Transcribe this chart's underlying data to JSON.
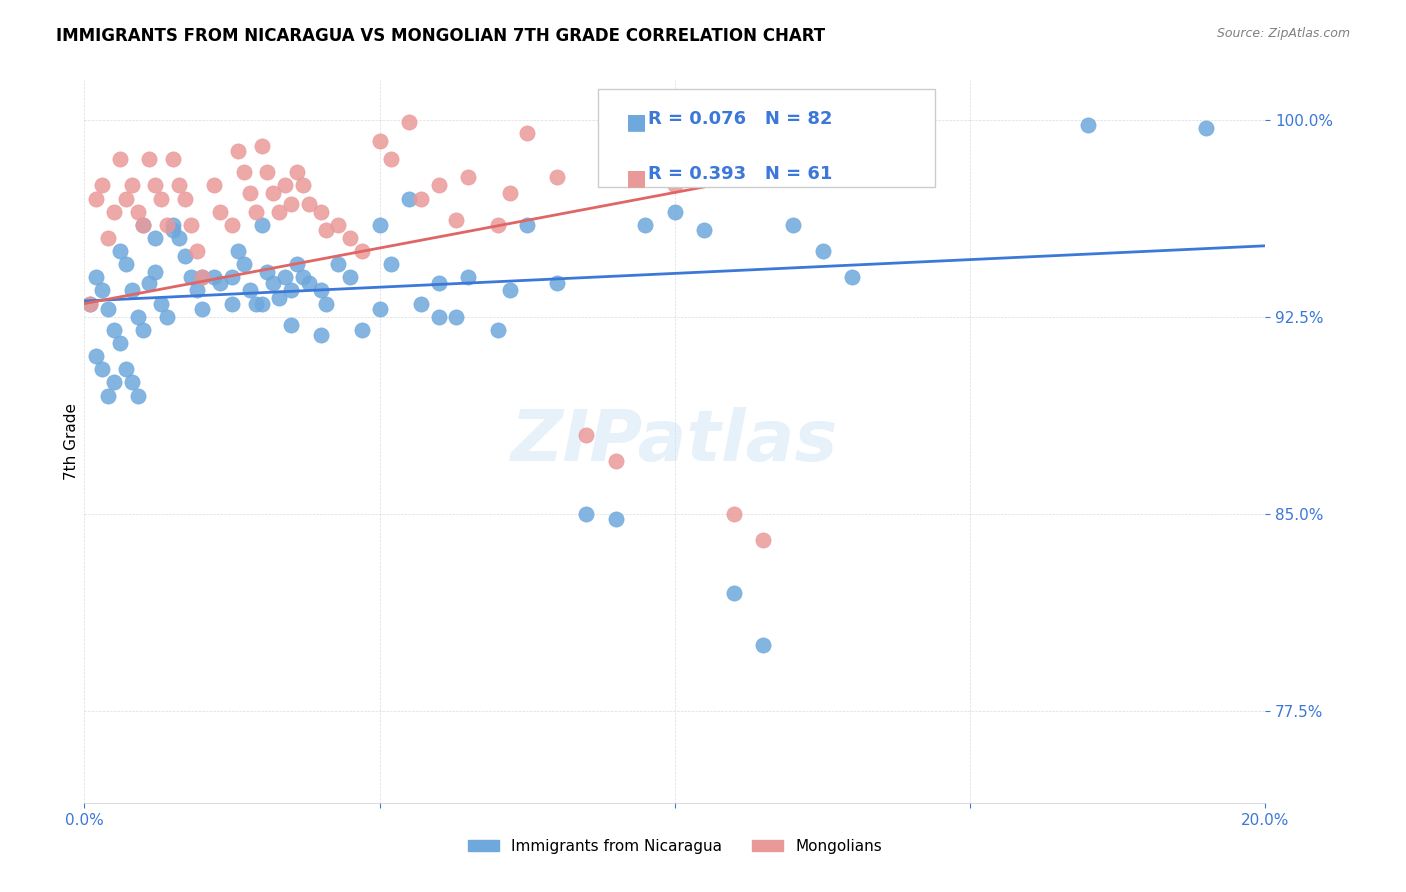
{
  "title": "IMMIGRANTS FROM NICARAGUA VS MONGOLIAN 7TH GRADE CORRELATION CHART",
  "source": "Source: ZipAtlas.com",
  "ylabel": "7th Grade",
  "xmin": 0.0,
  "xmax": 0.2,
  "ymin": 0.74,
  "ymax": 1.015,
  "yticks": [
    0.775,
    0.85,
    0.925,
    1.0
  ],
  "ytick_labels": [
    "77.5%",
    "85.0%",
    "92.5%",
    "100.0%"
  ],
  "xticks": [
    0.0,
    0.05,
    0.1,
    0.15,
    0.2
  ],
  "xtick_labels": [
    "0.0%",
    "",
    "",
    "",
    "20.0%"
  ],
  "blue_color": "#6fa8dc",
  "pink_color": "#ea9999",
  "blue_line_color": "#3c78d8",
  "pink_line_color": "#e06666",
  "legend_R_blue": "R = 0.076",
  "legend_N_blue": "N = 82",
  "legend_R_pink": "R = 0.393",
  "legend_N_pink": "N = 61",
  "watermark": "ZIPatlas",
  "blue_scatter_x": [
    0.001,
    0.002,
    0.003,
    0.004,
    0.005,
    0.006,
    0.007,
    0.008,
    0.009,
    0.01,
    0.011,
    0.012,
    0.013,
    0.014,
    0.015,
    0.016,
    0.017,
    0.018,
    0.019,
    0.02,
    0.022,
    0.023,
    0.025,
    0.026,
    0.027,
    0.028,
    0.029,
    0.03,
    0.031,
    0.032,
    0.033,
    0.034,
    0.035,
    0.036,
    0.037,
    0.038,
    0.04,
    0.041,
    0.043,
    0.045,
    0.047,
    0.05,
    0.052,
    0.055,
    0.057,
    0.06,
    0.063,
    0.065,
    0.07,
    0.072,
    0.075,
    0.08,
    0.085,
    0.09,
    0.095,
    0.1,
    0.105,
    0.11,
    0.115,
    0.12,
    0.125,
    0.13,
    0.002,
    0.003,
    0.004,
    0.005,
    0.006,
    0.007,
    0.008,
    0.009,
    0.01,
    0.012,
    0.015,
    0.02,
    0.025,
    0.03,
    0.035,
    0.04,
    0.05,
    0.06,
    0.17,
    0.19
  ],
  "blue_scatter_y": [
    0.93,
    0.94,
    0.935,
    0.928,
    0.92,
    0.95,
    0.945,
    0.935,
    0.925,
    0.92,
    0.938,
    0.942,
    0.93,
    0.925,
    0.96,
    0.955,
    0.948,
    0.94,
    0.935,
    0.928,
    0.94,
    0.938,
    0.93,
    0.95,
    0.945,
    0.935,
    0.93,
    0.96,
    0.942,
    0.938,
    0.932,
    0.94,
    0.935,
    0.945,
    0.94,
    0.938,
    0.935,
    0.93,
    0.945,
    0.94,
    0.92,
    0.96,
    0.945,
    0.97,
    0.93,
    0.938,
    0.925,
    0.94,
    0.92,
    0.935,
    0.96,
    0.938,
    0.85,
    0.848,
    0.96,
    0.965,
    0.958,
    0.82,
    0.8,
    0.96,
    0.95,
    0.94,
    0.91,
    0.905,
    0.895,
    0.9,
    0.915,
    0.905,
    0.9,
    0.895,
    0.96,
    0.955,
    0.958,
    0.94,
    0.94,
    0.93,
    0.922,
    0.918,
    0.928,
    0.925,
    0.998,
    0.997
  ],
  "pink_scatter_x": [
    0.001,
    0.002,
    0.003,
    0.004,
    0.005,
    0.006,
    0.007,
    0.008,
    0.009,
    0.01,
    0.011,
    0.012,
    0.013,
    0.014,
    0.015,
    0.016,
    0.017,
    0.018,
    0.019,
    0.02,
    0.022,
    0.023,
    0.025,
    0.026,
    0.027,
    0.028,
    0.029,
    0.03,
    0.031,
    0.032,
    0.033,
    0.034,
    0.035,
    0.036,
    0.037,
    0.038,
    0.04,
    0.041,
    0.043,
    0.045,
    0.047,
    0.05,
    0.052,
    0.055,
    0.057,
    0.06,
    0.063,
    0.065,
    0.07,
    0.072,
    0.075,
    0.08,
    0.085,
    0.09,
    0.095,
    0.1,
    0.105,
    0.11,
    0.115,
    0.12,
    0.125
  ],
  "pink_scatter_y": [
    0.93,
    0.97,
    0.975,
    0.955,
    0.965,
    0.985,
    0.97,
    0.975,
    0.965,
    0.96,
    0.985,
    0.975,
    0.97,
    0.96,
    0.985,
    0.975,
    0.97,
    0.96,
    0.95,
    0.94,
    0.975,
    0.965,
    0.96,
    0.988,
    0.98,
    0.972,
    0.965,
    0.99,
    0.98,
    0.972,
    0.965,
    0.975,
    0.968,
    0.98,
    0.975,
    0.968,
    0.965,
    0.958,
    0.96,
    0.955,
    0.95,
    0.992,
    0.985,
    0.999,
    0.97,
    0.975,
    0.962,
    0.978,
    0.96,
    0.972,
    0.995,
    0.978,
    0.88,
    0.87,
    0.99,
    0.975,
    0.995,
    0.85,
    0.84,
    0.99,
    0.985
  ],
  "blue_line_x": [
    0.0,
    0.2
  ],
  "blue_line_y": [
    0.931,
    0.952
  ],
  "pink_line_x": [
    0.0,
    0.13
  ],
  "pink_line_y": [
    0.93,
    0.985
  ]
}
